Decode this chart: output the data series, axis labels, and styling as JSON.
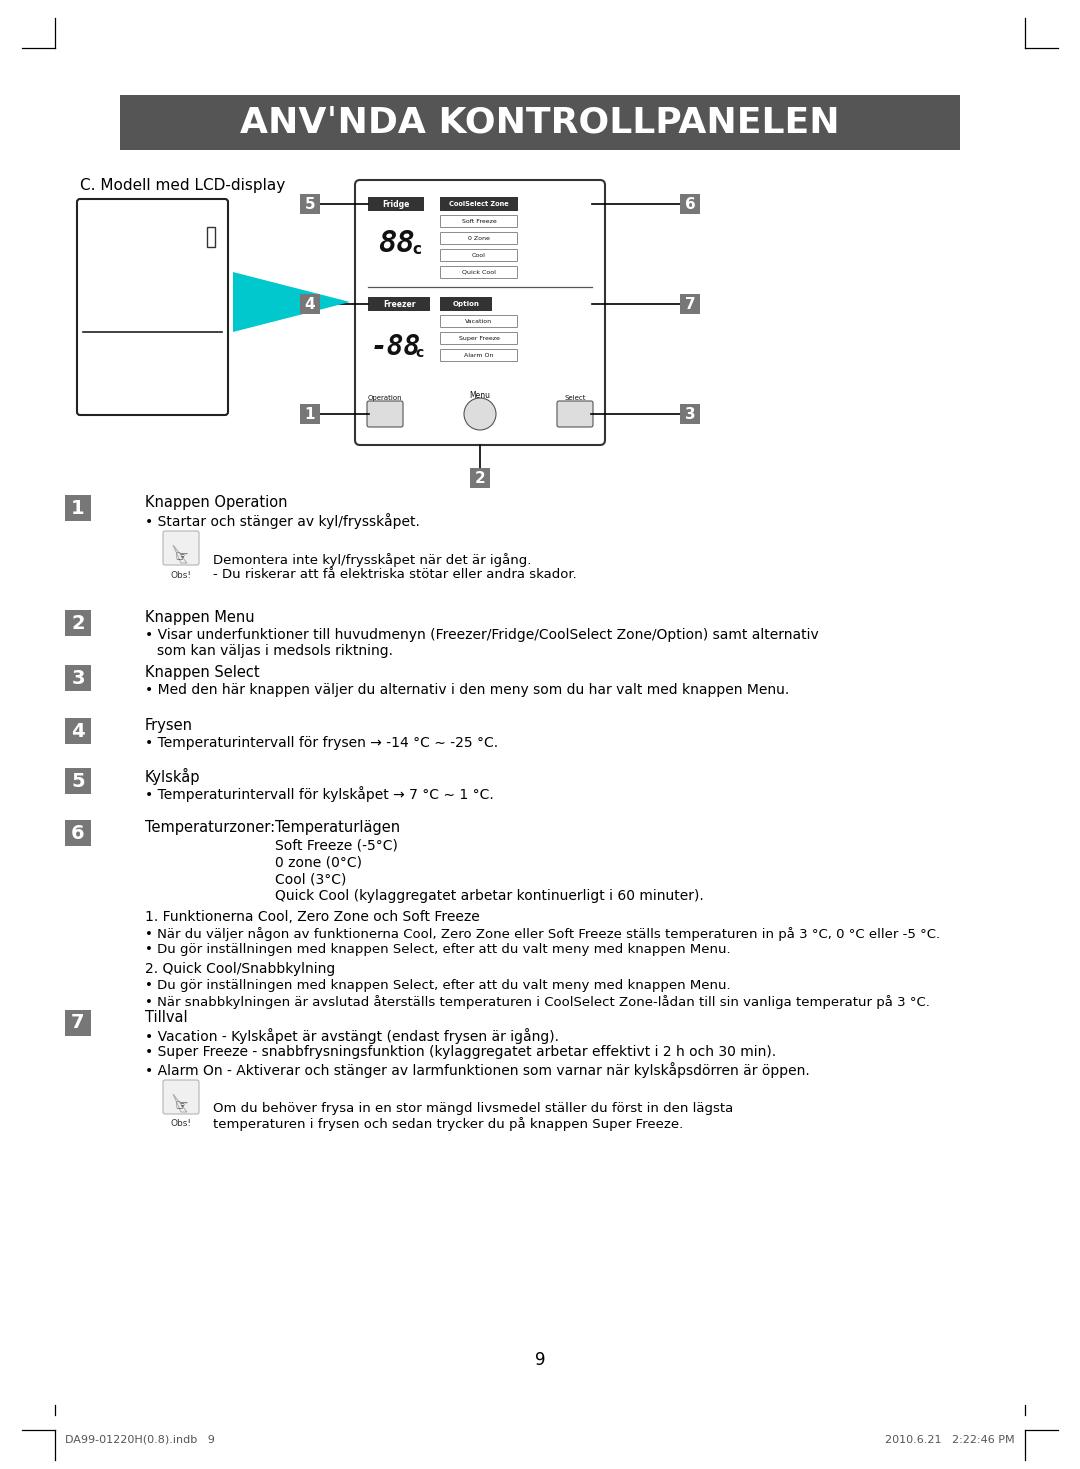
{
  "title": "ANVˈNDA KONTROLLPANELEN",
  "title_bg": "#555555",
  "title_color": "#ffffff",
  "page_bg": "#ffffff",
  "subtitle": "C. Modell med LCD-display",
  "footer_left": "DA99-01220H(0.8).indb   9",
  "footer_right": "2010.6.21   2:22:46 PM",
  "page_number": "9"
}
